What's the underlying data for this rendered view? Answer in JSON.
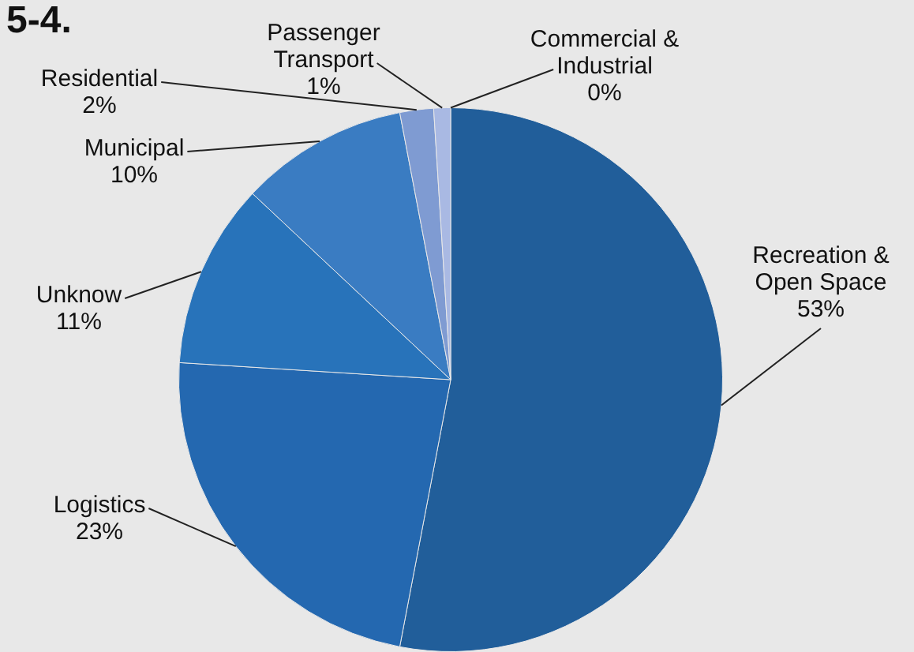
{
  "chart_data": {
    "type": "pie",
    "title": "5-4.",
    "categories": [
      "Recreation & Open Space",
      "Logistics",
      "Unknow",
      "Municipal",
      "Residential",
      "Passenger Transport",
      "Commercial & Industrial"
    ],
    "values": [
      53,
      23,
      11,
      10,
      2,
      1,
      0
    ],
    "value_labels": [
      "53%",
      "23%",
      "11%",
      "10%",
      "2%",
      "1%",
      "0%"
    ],
    "colors": [
      "#215e9a",
      "#2468b0",
      "#2873ba",
      "#3a7cc2",
      "#7f9bd2",
      "#a9b9e3",
      "#c4cfee"
    ],
    "legend": false
  }
}
